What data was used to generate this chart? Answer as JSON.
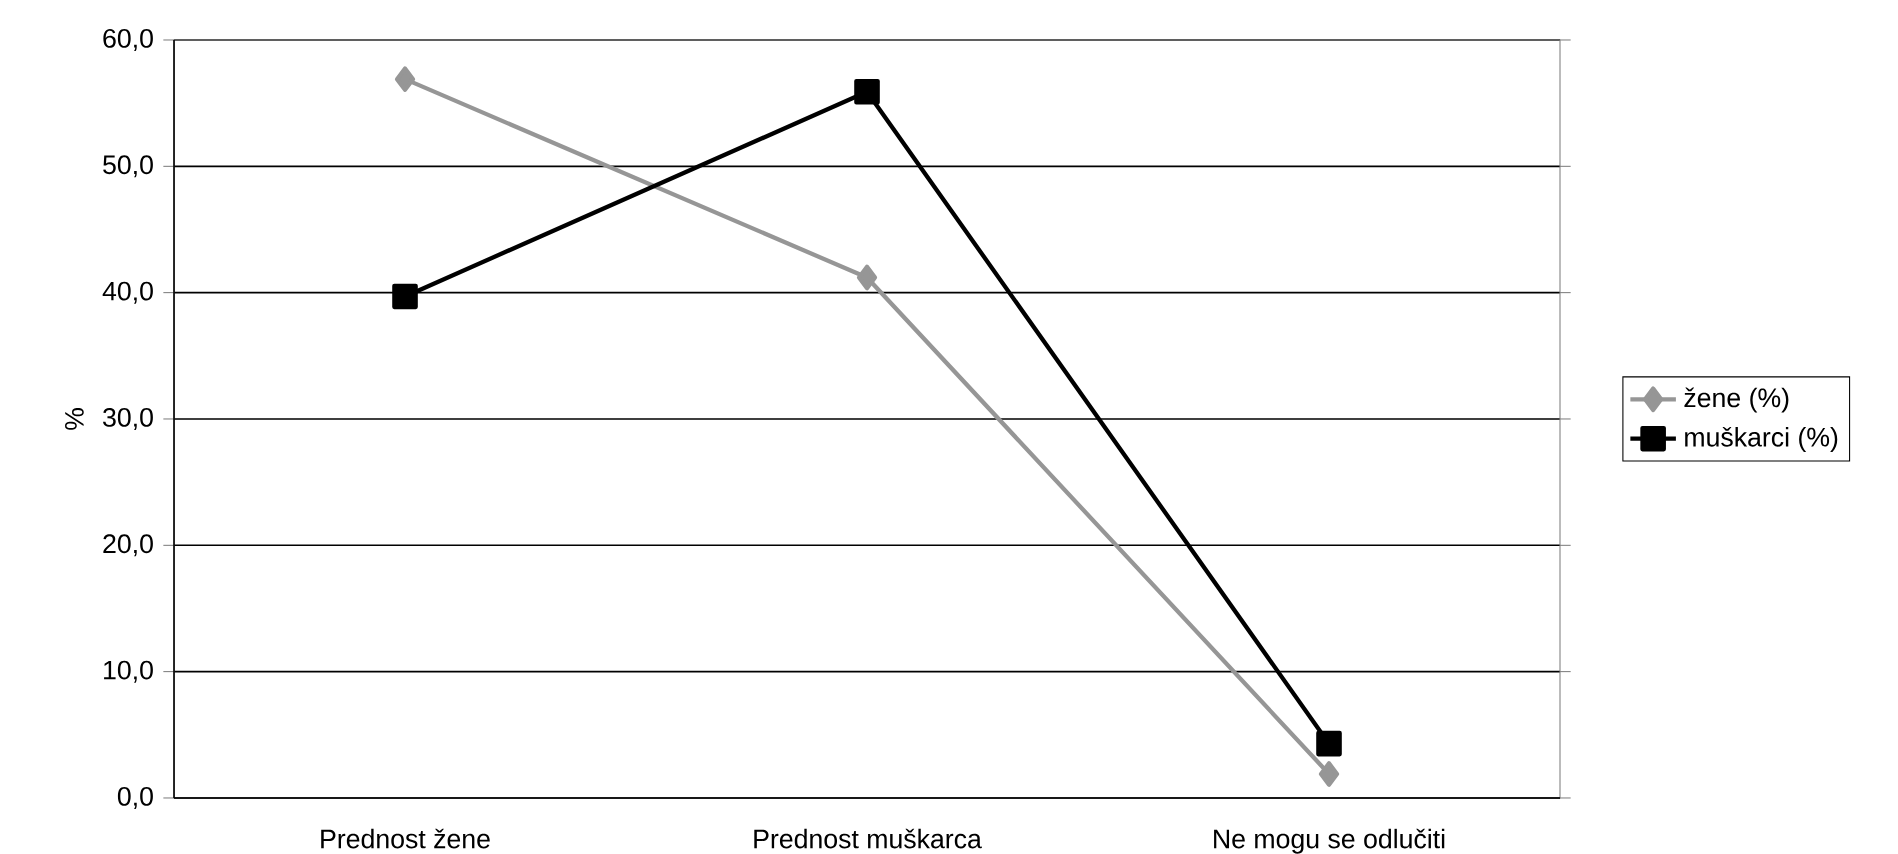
{
  "chart_data": {
    "type": "line",
    "ylabel": "%",
    "categories": [
      "Prednost žene",
      "Prednost muškarca",
      "Ne mogu se odlučiti"
    ],
    "series": [
      {
        "name": "žene (%)",
        "color": "#969696",
        "marker": "diamond",
        "values": [
          56.9,
          41.2,
          1.9
        ]
      },
      {
        "name": "muškarci (%)",
        "color": "#000000",
        "marker": "square",
        "values": [
          39.7,
          55.9,
          4.3
        ]
      }
    ],
    "ylim": [
      0,
      60
    ],
    "yticks": [
      {
        "value": 0,
        "label": "0,0"
      },
      {
        "value": 10,
        "label": "10,0"
      },
      {
        "value": 20,
        "label": "20,0"
      },
      {
        "value": 30,
        "label": "30,0"
      },
      {
        "value": 40,
        "label": "40,0"
      },
      {
        "value": 50,
        "label": "50,0"
      },
      {
        "value": 60,
        "label": "60,0"
      }
    ],
    "grid": "y",
    "legend": "right",
    "line_style": "solid"
  }
}
